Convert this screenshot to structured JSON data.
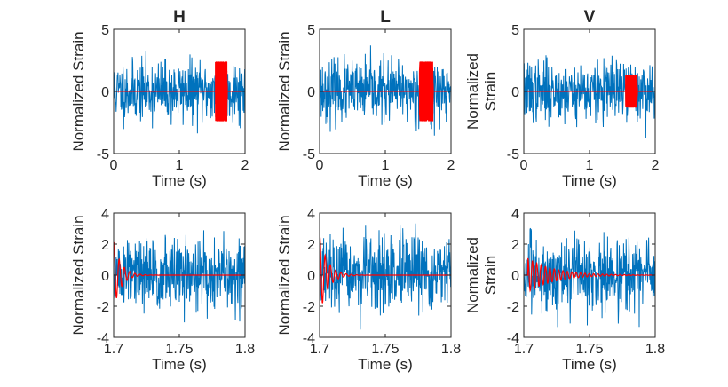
{
  "colors": {
    "noise": "#0072BD",
    "signal": "#FF0000",
    "axis": "#262626"
  },
  "chart_data": [
    {
      "type": "line",
      "title": "H",
      "xlabel": "Time (s)",
      "ylabel": [
        "Normalized Strain"
      ],
      "xlim": [
        0,
        2
      ],
      "ylim": [
        -5,
        5
      ],
      "xticks": [
        "0",
        "1",
        "2"
      ],
      "yticks": [
        "-5",
        "0",
        "5"
      ],
      "series": [
        {
          "name": "noise",
          "kind": "noise",
          "x_start": 0,
          "x_end": 2,
          "amplitude": 1.2,
          "seed": 11
        },
        {
          "name": "signal",
          "kind": "burst",
          "x_start": 1.55,
          "x_end": 1.73,
          "peak_t": 1.72,
          "amplitude": 2.4
        }
      ]
    },
    {
      "type": "line",
      "title": "L",
      "xlabel": "Time (s)",
      "ylabel": [
        "Normalized Strain"
      ],
      "xlim": [
        0,
        2
      ],
      "ylim": [
        -5,
        5
      ],
      "xticks": [
        "0",
        "1",
        "2"
      ],
      "yticks": [
        "-5",
        "0",
        "5"
      ],
      "series": [
        {
          "name": "noise",
          "kind": "noise",
          "x_start": 0,
          "x_end": 2,
          "amplitude": 1.2,
          "seed": 23
        },
        {
          "name": "signal",
          "kind": "burst",
          "x_start": 1.52,
          "x_end": 1.73,
          "peak_t": 1.72,
          "amplitude": 2.4
        }
      ]
    },
    {
      "type": "line",
      "title": "V",
      "xlabel": "Time (s)",
      "ylabel": [
        "Normalized",
        "Strain"
      ],
      "xlim": [
        0,
        2
      ],
      "ylim": [
        -5,
        5
      ],
      "xticks": [
        "0",
        "1",
        "2"
      ],
      "yticks": [
        "-5",
        "0",
        "5"
      ],
      "series": [
        {
          "name": "noise",
          "kind": "noise",
          "x_start": 0,
          "x_end": 2,
          "amplitude": 1.2,
          "seed": 37
        },
        {
          "name": "signal",
          "kind": "burst",
          "x_start": 1.55,
          "x_end": 1.73,
          "peak_t": 1.72,
          "amplitude": 1.3
        }
      ]
    },
    {
      "type": "line",
      "title": "",
      "xlabel": "Time (s)",
      "ylabel": [
        "Normalized Strain"
      ],
      "xlim": [
        1.7,
        1.8
      ],
      "ylim": [
        -4,
        4
      ],
      "xticks": [
        "1.7",
        "1.75",
        "1.8"
      ],
      "yticks": [
        "-4",
        "-2",
        "0",
        "2",
        "4"
      ],
      "series": [
        {
          "name": "noise",
          "kind": "noise",
          "x_start": 1.7,
          "x_end": 1.8,
          "amplitude": 1.2,
          "seed": 51
        },
        {
          "name": "signal",
          "kind": "ringdown",
          "x_start": 1.7,
          "x_end": 1.8,
          "t0": 1.7,
          "amplitude": 2.2,
          "freq": 250,
          "decay": 0.0055
        }
      ]
    },
    {
      "type": "line",
      "title": "",
      "xlabel": "Time (s)",
      "ylabel": [
        "Normalized Strain"
      ],
      "xlim": [
        1.7,
        1.8
      ],
      "ylim": [
        -4,
        4
      ],
      "xticks": [
        "1.7",
        "1.75",
        "1.8"
      ],
      "yticks": [
        "-4",
        "-2",
        "0",
        "2",
        "4"
      ],
      "series": [
        {
          "name": "noise",
          "kind": "noise",
          "x_start": 1.7,
          "x_end": 1.8,
          "amplitude": 1.2,
          "seed": 67
        },
        {
          "name": "signal",
          "kind": "ringdown",
          "x_start": 1.7,
          "x_end": 1.8,
          "t0": 1.7,
          "amplitude": 2.6,
          "freq": 250,
          "decay": 0.006
        }
      ]
    },
    {
      "type": "line",
      "title": "",
      "xlabel": "Time (s)",
      "ylabel": [
        "Normalized",
        "Strain"
      ],
      "xlim": [
        1.7,
        1.8
      ],
      "ylim": [
        -4,
        4
      ],
      "xticks": [
        "1.7",
        "1.75",
        "1.8"
      ],
      "yticks": [
        "-4",
        "-2",
        "0",
        "2",
        "4"
      ],
      "series": [
        {
          "name": "noise",
          "kind": "noise",
          "x_start": 1.7,
          "x_end": 1.8,
          "amplitude": 1.2,
          "seed": 83
        },
        {
          "name": "signal",
          "kind": "ringdown",
          "x_start": 1.7,
          "x_end": 1.8,
          "t0": 1.703,
          "amplitude": 1.1,
          "freq": 300,
          "decay": 0.02
        }
      ]
    }
  ]
}
